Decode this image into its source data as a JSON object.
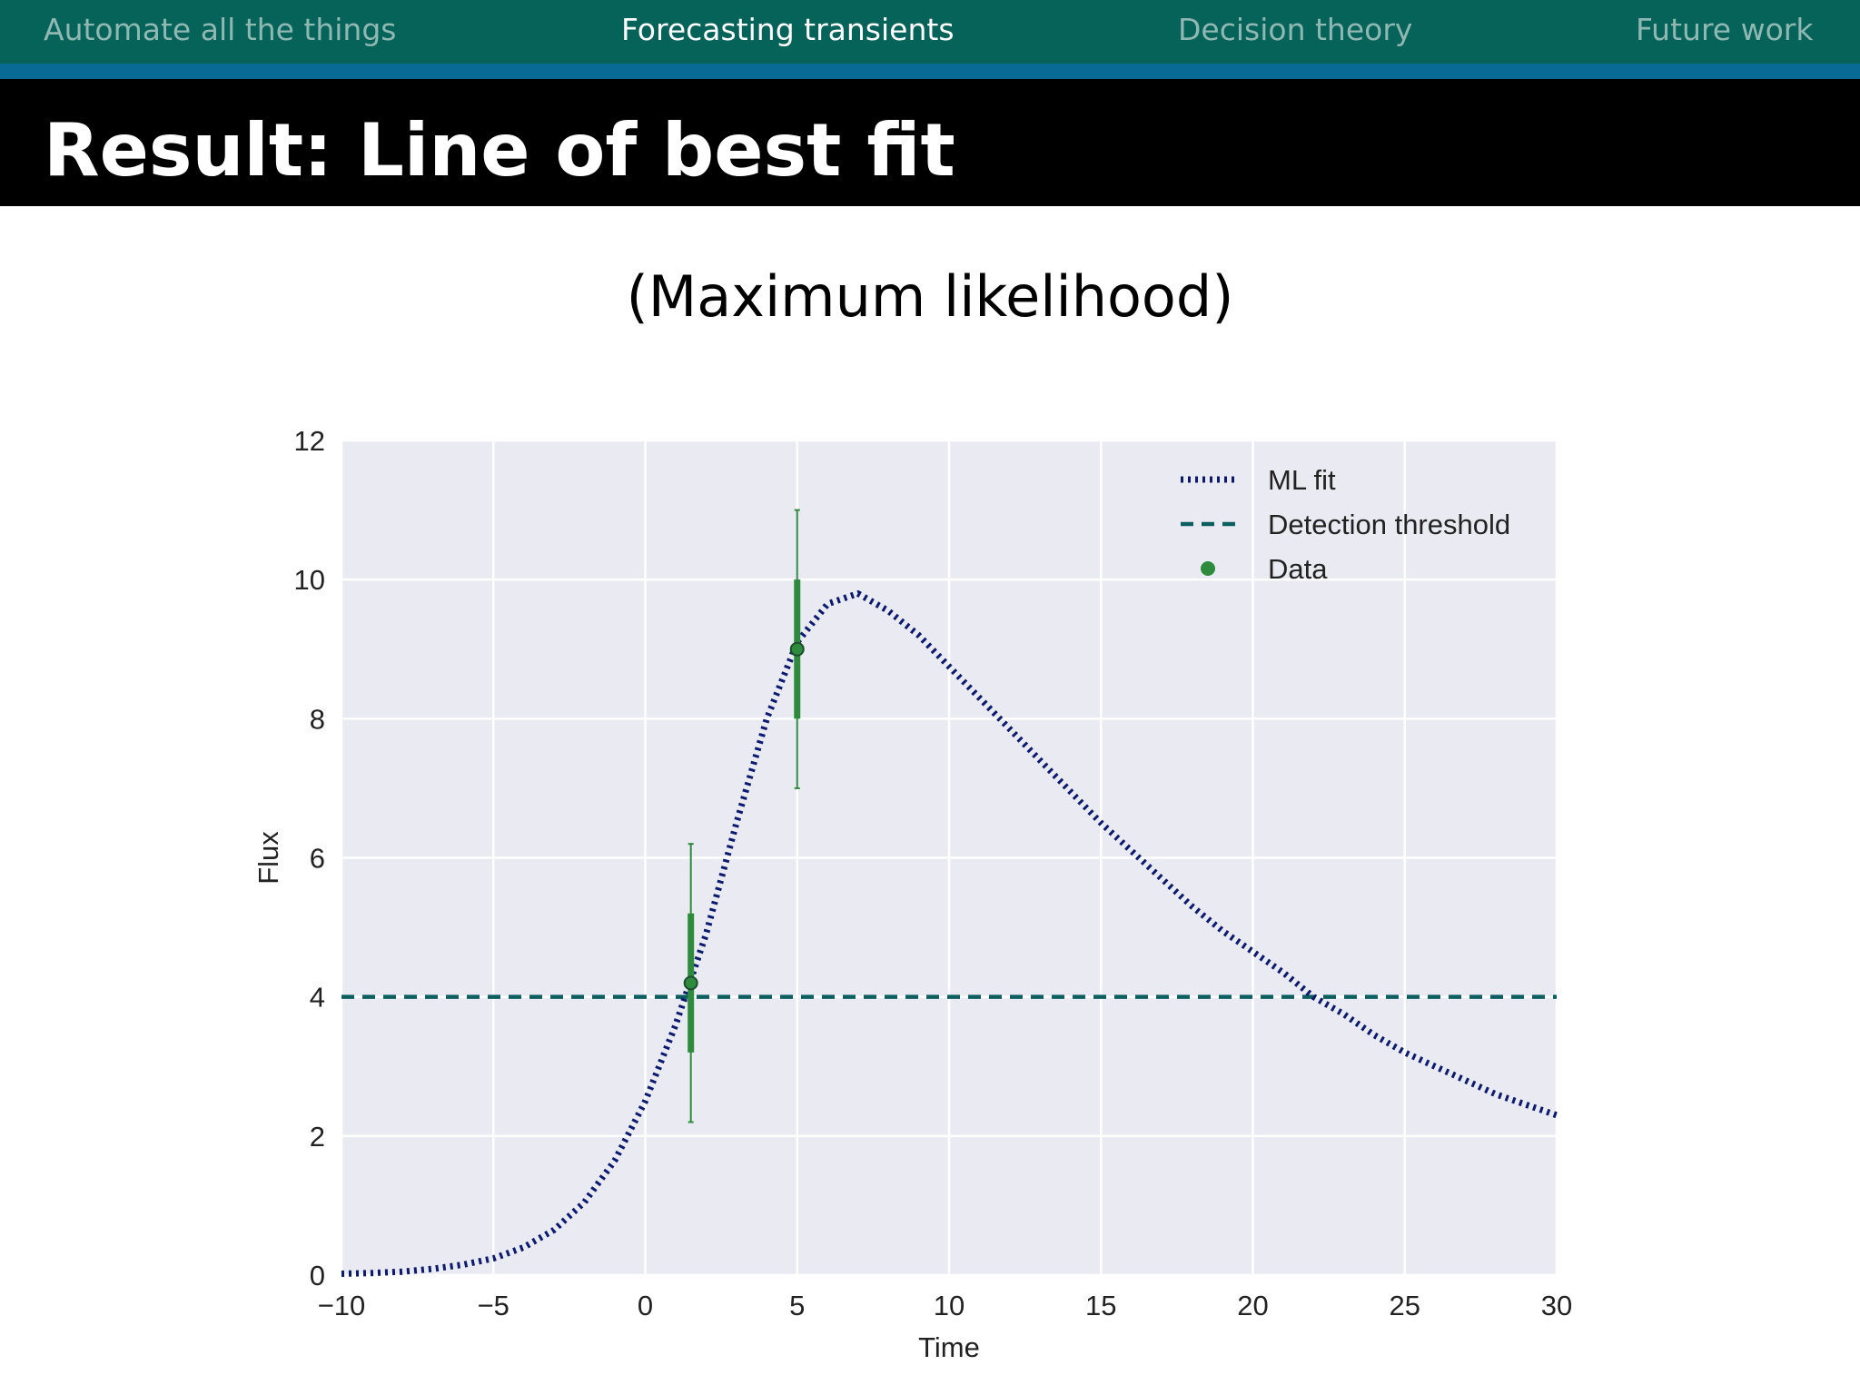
{
  "nav": {
    "items": [
      {
        "label": "Automate all the things",
        "active": false
      },
      {
        "label": "Forecasting transients",
        "active": true
      },
      {
        "label": "Decision theory",
        "active": false
      },
      {
        "label": "Future work",
        "active": false
      }
    ]
  },
  "slide": {
    "title": "Result: Line of best fit",
    "subtitle": "(Maximum likelihood)"
  },
  "colors": {
    "nav_bg": "#05635a",
    "nav_stripe": "#0a6a96",
    "fit_line": "#0b1a6e",
    "threshold_line": "#0d5f5f",
    "data_points": "#2e8b3e",
    "plot_bg": "#eaeaf2"
  },
  "chart_data": {
    "type": "line",
    "xlabel": "Time",
    "ylabel": "Flux",
    "xlim": [
      -10,
      30
    ],
    "ylim": [
      0,
      12
    ],
    "xticks": [
      -10,
      -5,
      0,
      5,
      10,
      15,
      20,
      25,
      30
    ],
    "xtick_labels": [
      "−10",
      "−5",
      "0",
      "5",
      "10",
      "15",
      "20",
      "25",
      "30"
    ],
    "yticks": [
      0,
      2,
      4,
      6,
      8,
      10,
      12
    ],
    "ytick_labels": [
      "0",
      "2",
      "4",
      "6",
      "8",
      "10",
      "12"
    ],
    "grid": true,
    "legend": {
      "position": "top-right",
      "entries": [
        {
          "label": "ML fit",
          "style": "dotted"
        },
        {
          "label": "Detection threshold",
          "style": "dashed"
        },
        {
          "label": "Data",
          "style": "marker"
        }
      ]
    },
    "series": [
      {
        "name": "ML fit",
        "style": "dotted",
        "x": [
          -10,
          -9,
          -8,
          -7,
          -6,
          -5,
          -4,
          -3,
          -2,
          -1,
          0,
          1,
          2,
          3,
          4,
          5,
          6,
          7,
          8,
          9,
          10,
          11,
          12,
          13,
          14,
          15,
          16,
          17,
          18,
          19,
          20,
          21,
          22,
          23,
          24,
          25,
          26,
          27,
          28,
          29,
          30
        ],
        "y": [
          0.02,
          0.03,
          0.05,
          0.09,
          0.15,
          0.24,
          0.4,
          0.65,
          1.05,
          1.65,
          2.5,
          3.6,
          4.9,
          6.5,
          8.0,
          9.1,
          9.65,
          9.8,
          9.55,
          9.2,
          8.75,
          8.3,
          7.85,
          7.4,
          6.95,
          6.5,
          6.1,
          5.7,
          5.3,
          4.95,
          4.65,
          4.35,
          4.0,
          3.75,
          3.45,
          3.2,
          3.0,
          2.8,
          2.6,
          2.45,
          2.3
        ]
      },
      {
        "name": "Detection threshold",
        "style": "dashed",
        "x": [
          -10,
          30
        ],
        "y": [
          4,
          4
        ]
      },
      {
        "name": "Data",
        "style": "errorbar",
        "x": [
          1.5,
          5.0
        ],
        "y": [
          4.2,
          9.0
        ],
        "err_inner": [
          1.0,
          1.0
        ],
        "err_outer": [
          2.0,
          2.0
        ]
      }
    ]
  }
}
